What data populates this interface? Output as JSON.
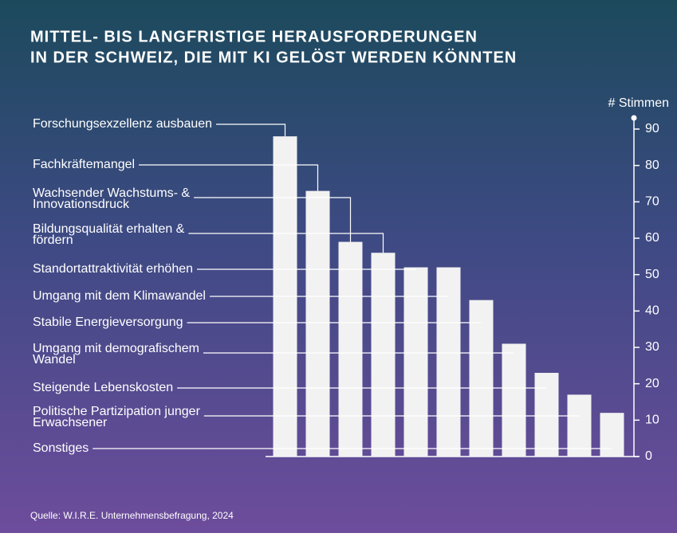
{
  "chart_data": {
    "type": "bar",
    "title": [
      "MITTEL- BIS LANGFRISTIGE HERAUSFORDERUNGEN",
      "IN DER SCHWEIZ, DIE MIT KI GELÖST WERDEN KÖNNTEN"
    ],
    "y_axis_label": "# Stimmen",
    "categories": [
      [
        "Forschungsexzellenz ausbauen"
      ],
      [
        "Fachkräftemangel"
      ],
      [
        "Wachsender Wachstums- &",
        "Innovationsdruck"
      ],
      [
        "Bildungsqualität erhalten &",
        "fördern"
      ],
      [
        "Standortattraktivität erhöhen"
      ],
      [
        "Umgang mit dem Klimawandel"
      ],
      [
        "Stabile Energieversorgung"
      ],
      [
        "Umgang mit demografischem",
        "Wandel"
      ],
      [
        "Steigende Lebenskosten"
      ],
      [
        "Politische Partizipation junger",
        "Erwachsener"
      ],
      [
        "Sonstiges"
      ]
    ],
    "values": [
      88,
      73,
      59,
      56,
      52,
      52,
      43,
      31,
      23,
      17,
      12
    ],
    "color": "#f2f2f2",
    "ylim": [
      0,
      90
    ],
    "yticks": [
      0,
      10,
      20,
      30,
      40,
      50,
      60,
      70,
      80,
      90
    ],
    "source": "Quelle: W.I.R.E. Unternehmensbefragung, 2024"
  }
}
